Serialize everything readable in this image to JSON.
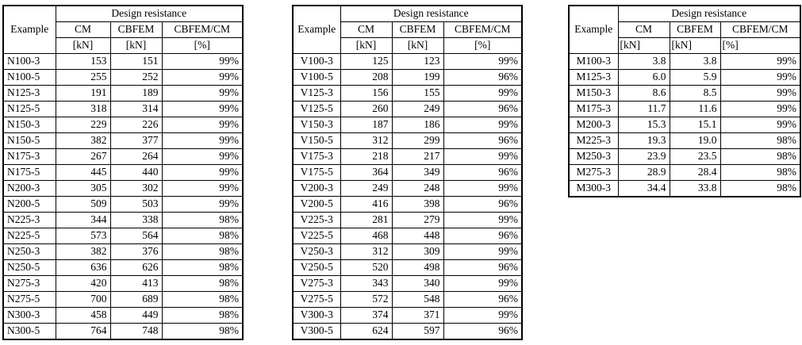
{
  "page": {
    "background_color": "#ffffff",
    "text_color": "#000000",
    "border_color": "#000000"
  },
  "tables": [
    {
      "name": "design-resistance-table-n-series",
      "header": {
        "example": "Example",
        "group": "Design resistance",
        "columns": [
          "CM",
          "CBFEM",
          "CBFEM/CM"
        ],
        "units": [
          "[kN]",
          "[kN]",
          "[%]"
        ]
      },
      "rows": [
        [
          "N100-3",
          "153",
          "151",
          "99%"
        ],
        [
          "N100-5",
          "255",
          "252",
          "99%"
        ],
        [
          "N125-3",
          "191",
          "189",
          "99%"
        ],
        [
          "N125-5",
          "318",
          "314",
          "99%"
        ],
        [
          "N150-3",
          "229",
          "226",
          "99%"
        ],
        [
          "N150-5",
          "382",
          "377",
          "99%"
        ],
        [
          "N175-3",
          "267",
          "264",
          "99%"
        ],
        [
          "N175-5",
          "445",
          "440",
          "99%"
        ],
        [
          "N200-3",
          "305",
          "302",
          "99%"
        ],
        [
          "N200-5",
          "509",
          "503",
          "99%"
        ],
        [
          "N225-3",
          "344",
          "338",
          "98%"
        ],
        [
          "N225-5",
          "573",
          "564",
          "98%"
        ],
        [
          "N250-3",
          "382",
          "376",
          "98%"
        ],
        [
          "N250-5",
          "636",
          "626",
          "98%"
        ],
        [
          "N275-3",
          "420",
          "413",
          "98%"
        ],
        [
          "N275-5",
          "700",
          "689",
          "98%"
        ],
        [
          "N300-3",
          "458",
          "449",
          "98%"
        ],
        [
          "N300-5",
          "764",
          "748",
          "98%"
        ]
      ]
    },
    {
      "name": "design-resistance-table-v-series",
      "header": {
        "example": "Example",
        "group": "Design resistance",
        "columns": [
          "CM",
          "CBFEM",
          "CBFEM/CM"
        ],
        "units": [
          "[kN]",
          "[kN]",
          "[%]"
        ]
      },
      "rows": [
        [
          "V100-3",
          "125",
          "123",
          "99%"
        ],
        [
          "V100-5",
          "208",
          "199",
          "96%"
        ],
        [
          "V125-3",
          "156",
          "155",
          "99%"
        ],
        [
          "V125-5",
          "260",
          "249",
          "96%"
        ],
        [
          "V150-3",
          "187",
          "186",
          "99%"
        ],
        [
          "V150-5",
          "312",
          "299",
          "96%"
        ],
        [
          "V175-3",
          "218",
          "217",
          "99%"
        ],
        [
          "V175-5",
          "364",
          "349",
          "96%"
        ],
        [
          "V200-3",
          "249",
          "248",
          "99%"
        ],
        [
          "V200-5",
          "416",
          "398",
          "96%"
        ],
        [
          "V225-3",
          "281",
          "279",
          "99%"
        ],
        [
          "V225-5",
          "468",
          "448",
          "96%"
        ],
        [
          "V250-3",
          "312",
          "309",
          "99%"
        ],
        [
          "V250-5",
          "520",
          "498",
          "96%"
        ],
        [
          "V275-3",
          "343",
          "340",
          "99%"
        ],
        [
          "V275-5",
          "572",
          "548",
          "96%"
        ],
        [
          "V300-3",
          "374",
          "371",
          "99%"
        ],
        [
          "V300-5",
          "624",
          "597",
          "96%"
        ]
      ]
    },
    {
      "name": "design-resistance-table-m-series",
      "header": {
        "example": "Example",
        "group": "Design resistance",
        "columns": [
          "CM",
          "CBFEM",
          "CBFEM/CM"
        ],
        "units": [
          "[kN]",
          "[kN]",
          "[%]"
        ]
      },
      "rows": [
        [
          "M100-3",
          "3.8",
          "3.8",
          "99%"
        ],
        [
          "M125-3",
          "6.0",
          "5.9",
          "99%"
        ],
        [
          "M150-3",
          "8.6",
          "8.5",
          "99%"
        ],
        [
          "M175-3",
          "11.7",
          "11.6",
          "99%"
        ],
        [
          "M200-3",
          "15.3",
          "15.1",
          "99%"
        ],
        [
          "M225-3",
          "19.3",
          "19.0",
          "98%"
        ],
        [
          "M250-3",
          "23.9",
          "23.5",
          "98%"
        ],
        [
          "M275-3",
          "28.9",
          "28.4",
          "98%"
        ],
        [
          "M300-3",
          "34.4",
          "33.8",
          "98%"
        ]
      ]
    }
  ]
}
